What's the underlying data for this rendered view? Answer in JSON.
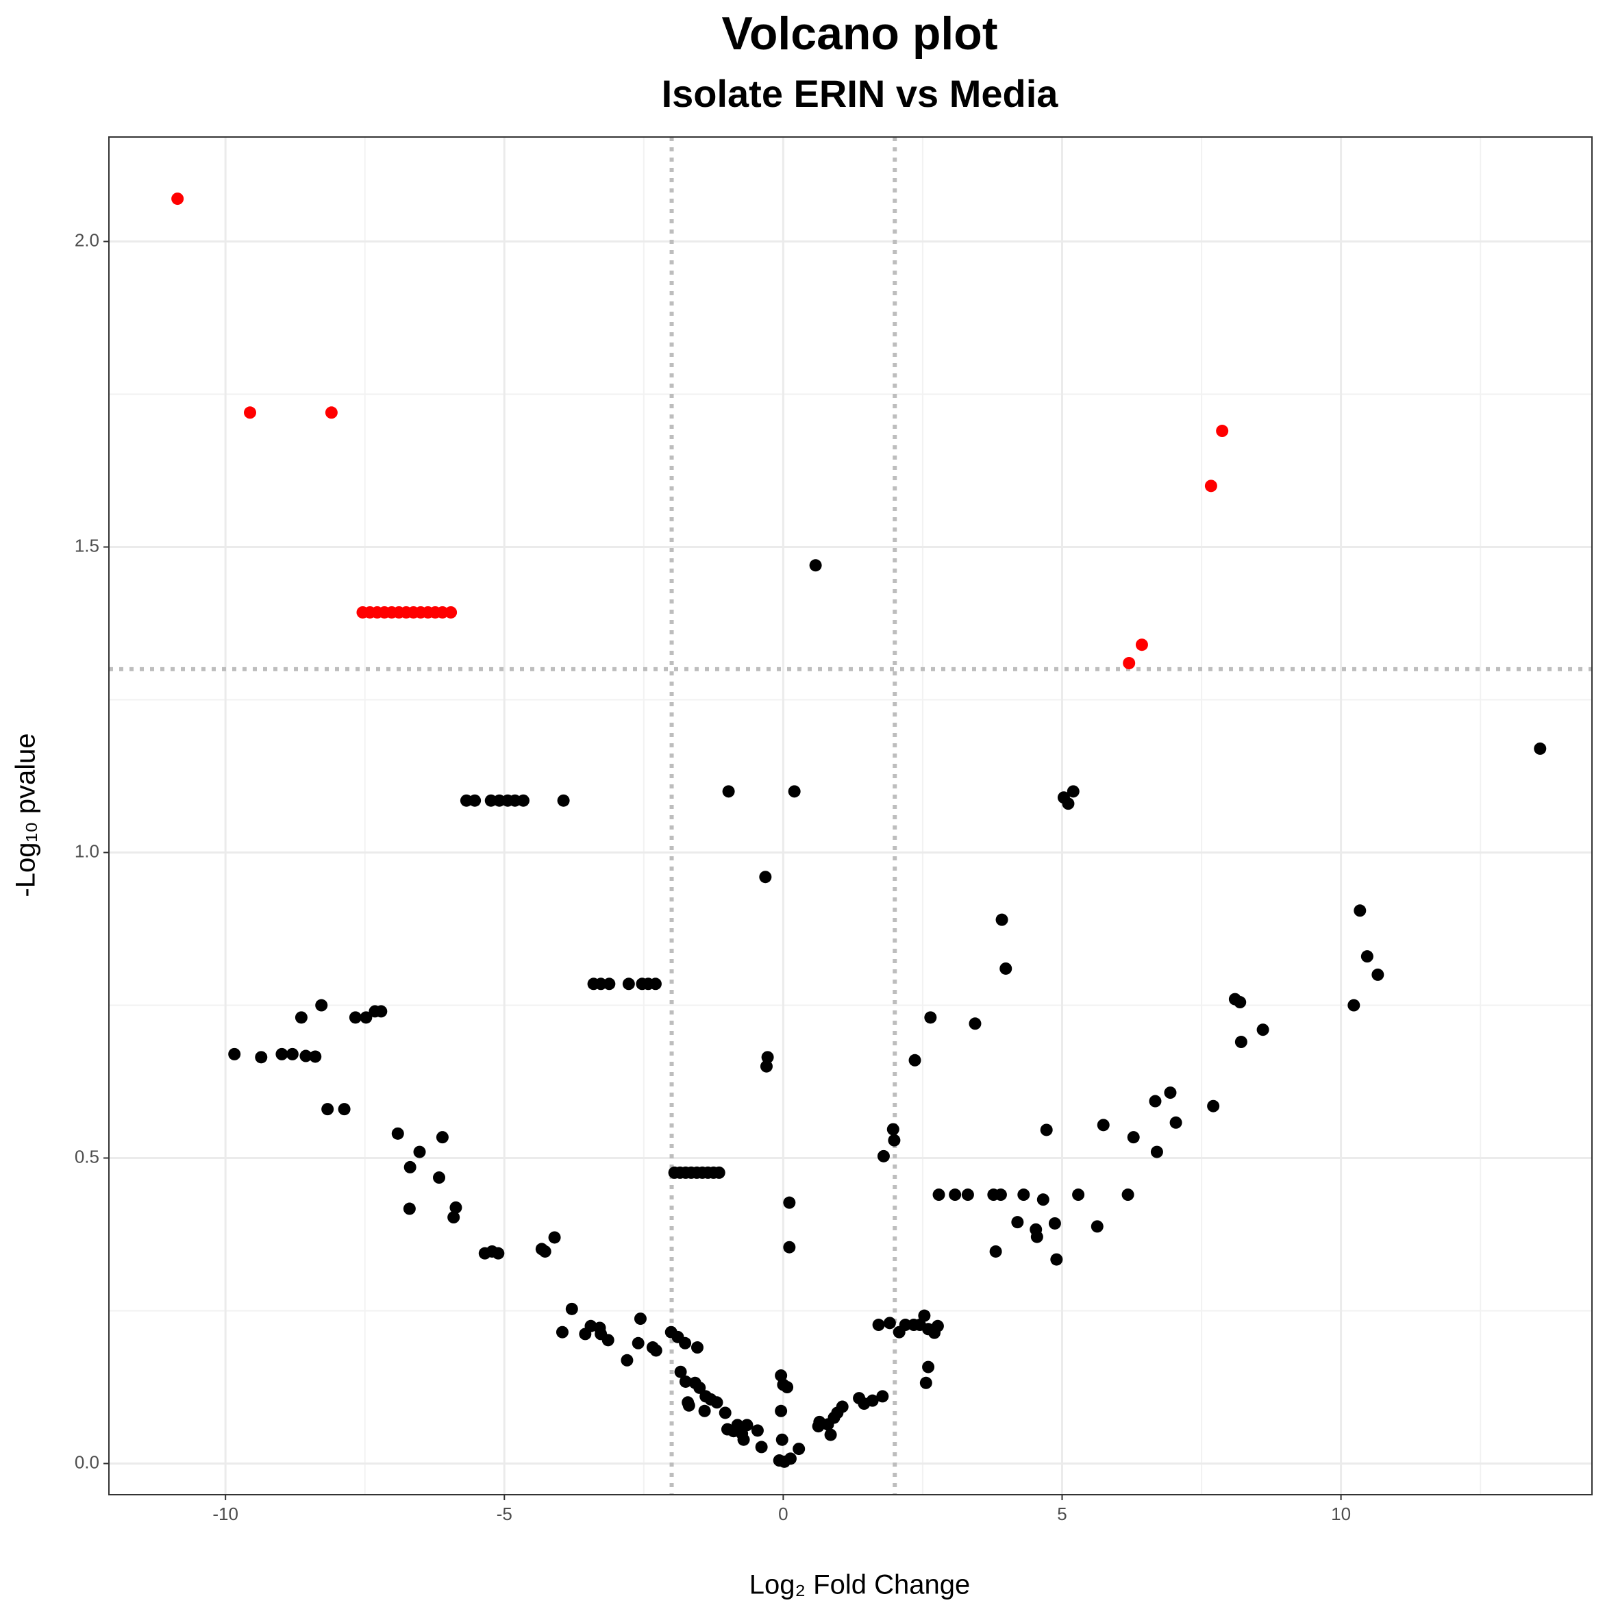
{
  "chart_data": {
    "type": "scatter",
    "title": "Volcano plot",
    "subtitle": "Isolate ERIN vs Media",
    "x_label": "Log₂ Fold Change",
    "y_label": "-Log₁₀ pvalue",
    "xlim": [
      -12.09,
      14.5
    ],
    "ylim": [
      -0.051,
      2.171
    ],
    "xticks": [
      -10,
      -5,
      0,
      5,
      10
    ],
    "yticks": [
      {
        "value": 0,
        "label": "0.0"
      },
      {
        "value": 0.5,
        "label": "0.5"
      },
      {
        "value": 1,
        "label": "1.0"
      },
      {
        "value": 1.5,
        "label": "1.5"
      },
      {
        "value": 2,
        "label": "2.0"
      }
    ],
    "grid": true,
    "vlines": [
      -2,
      2
    ],
    "hline": 1.3,
    "threshold_color": "#bdbdbd",
    "series": [
      {
        "color": "#ff0000",
        "x": [
          -10.86,
          -9.56,
          -8.1,
          -7.54,
          -7.41,
          -7.28,
          -7.15,
          -7.02,
          -6.89,
          -6.76,
          -6.63,
          -6.5,
          -6.37,
          -6.24,
          -6.11,
          -5.96,
          7.87,
          7.67,
          6.43,
          6.2
        ],
        "values": [
          2.07,
          1.72,
          1.72,
          1.393,
          1.393,
          1.393,
          1.393,
          1.393,
          1.393,
          1.393,
          1.393,
          1.393,
          1.393,
          1.393,
          1.393,
          1.393,
          1.69,
          1.6,
          1.34,
          1.31
        ]
      },
      {
        "color": "#000000",
        "x": [
          0.58,
          13.57,
          -5.68,
          -5.53,
          -5.24,
          -5.09,
          -4.94,
          -4.81,
          -4.66,
          -3.94,
          -0.98,
          0.2,
          5.03,
          5.2,
          5.11,
          -0.32,
          3.92,
          3.99,
          10.34,
          10.47,
          10.66,
          10.23,
          8.1,
          8.19,
          8.21,
          8.6,
          -3.4,
          -3.27,
          -3.12,
          -2.77,
          -2.53,
          -2.42,
          -2.29,
          2.64,
          3.44,
          2.36,
          -0.28,
          -0.3,
          -9.84,
          -9.36,
          -8.99,
          -8.8,
          -8.56,
          -8.39,
          -8.64,
          -8.28,
          -7.67,
          -7.48,
          -7.32,
          -7.21,
          -8.17,
          -7.87,
          -6.91,
          -6.52,
          -6.69,
          -6.11,
          -6.17,
          -6.7,
          -5.87,
          -5.91,
          -5.35,
          -5.22,
          -5.11,
          -4.33,
          -4.27,
          -4.1,
          -3.79,
          -3.96,
          -3.55,
          -3.45,
          -3.29,
          -3.27,
          -3.14,
          -2.8,
          -2.6,
          -2.56,
          -2.34,
          -2.28,
          -1.95,
          -1.85,
          -1.75,
          -1.65,
          -1.55,
          -1.45,
          -1.35,
          -1.25,
          -1.15,
          -2.01,
          -1.89,
          -1.76,
          -1.54,
          -1.84,
          -1.75,
          -1.58,
          -1.5,
          -1.39,
          -1.3,
          -1.19,
          -1.71,
          -1.69,
          -1.41,
          -1.04,
          -1.0,
          -0.89,
          -0.82,
          -0.74,
          -0.71,
          -0.65,
          -0.46,
          -0.39,
          -0.04,
          0.0,
          0.07,
          -0.04,
          -0.02,
          -0.07,
          0.02,
          0.13,
          0.28,
          0.11,
          0.11,
          0.65,
          0.63,
          0.8,
          0.85,
          0.91,
          0.97,
          1.06,
          1.36,
          1.45,
          1.6,
          1.78,
          1.8,
          1.97,
          1.99,
          1.71,
          1.91,
          2.08,
          2.19,
          2.34,
          2.45,
          2.53,
          2.6,
          2.71,
          2.77,
          2.6,
          2.56,
          2.79,
          3.08,
          3.31,
          3.77,
          3.9,
          3.81,
          4.31,
          4.2,
          4.53,
          4.55,
          4.66,
          4.72,
          4.87,
          4.9,
          5.29,
          5.63,
          5.74,
          6.18,
          6.28,
          6.67,
          6.7,
          6.94,
          7.04,
          7.71
        ],
        "values": [
          1.47,
          1.17,
          1.085,
          1.085,
          1.085,
          1.085,
          1.085,
          1.085,
          1.085,
          1.085,
          1.1,
          1.1,
          1.09,
          1.1,
          1.08,
          0.96,
          0.89,
          0.81,
          0.905,
          0.83,
          0.8,
          0.75,
          0.76,
          0.755,
          0.69,
          0.71,
          0.785,
          0.785,
          0.785,
          0.785,
          0.785,
          0.785,
          0.785,
          0.73,
          0.72,
          0.66,
          0.665,
          0.65,
          0.67,
          0.665,
          0.67,
          0.67,
          0.667,
          0.666,
          0.73,
          0.75,
          0.73,
          0.73,
          0.74,
          0.74,
          0.58,
          0.58,
          0.54,
          0.51,
          0.485,
          0.534,
          0.468,
          0.417,
          0.419,
          0.403,
          0.344,
          0.347,
          0.344,
          0.351,
          0.347,
          0.37,
          0.253,
          0.215,
          0.212,
          0.225,
          0.222,
          0.212,
          0.202,
          0.169,
          0.197,
          0.237,
          0.19,
          0.185,
          0.476,
          0.476,
          0.476,
          0.476,
          0.476,
          0.476,
          0.476,
          0.476,
          0.476,
          0.215,
          0.207,
          0.197,
          0.19,
          0.15,
          0.134,
          0.132,
          0.124,
          0.11,
          0.105,
          0.1,
          0.1,
          0.095,
          0.086,
          0.083,
          0.056,
          0.053,
          0.063,
          0.049,
          0.039,
          0.063,
          0.054,
          0.027,
          0.144,
          0.129,
          0.125,
          0.086,
          0.039,
          0.005,
          0.003,
          0.008,
          0.024,
          0.427,
          0.354,
          0.068,
          0.061,
          0.064,
          0.047,
          0.075,
          0.083,
          0.093,
          0.107,
          0.098,
          0.103,
          0.11,
          0.503,
          0.547,
          0.529,
          0.227,
          0.23,
          0.215,
          0.227,
          0.227,
          0.227,
          0.242,
          0.22,
          0.214,
          0.225,
          0.158,
          0.132,
          0.44,
          0.44,
          0.44,
          0.44,
          0.44,
          0.347,
          0.44,
          0.395,
          0.383,
          0.371,
          0.432,
          0.546,
          0.393,
          0.334,
          0.44,
          0.388,
          0.554,
          0.44,
          0.534,
          0.593,
          0.51,
          0.607,
          0.558,
          0.585
        ]
      }
    ]
  }
}
